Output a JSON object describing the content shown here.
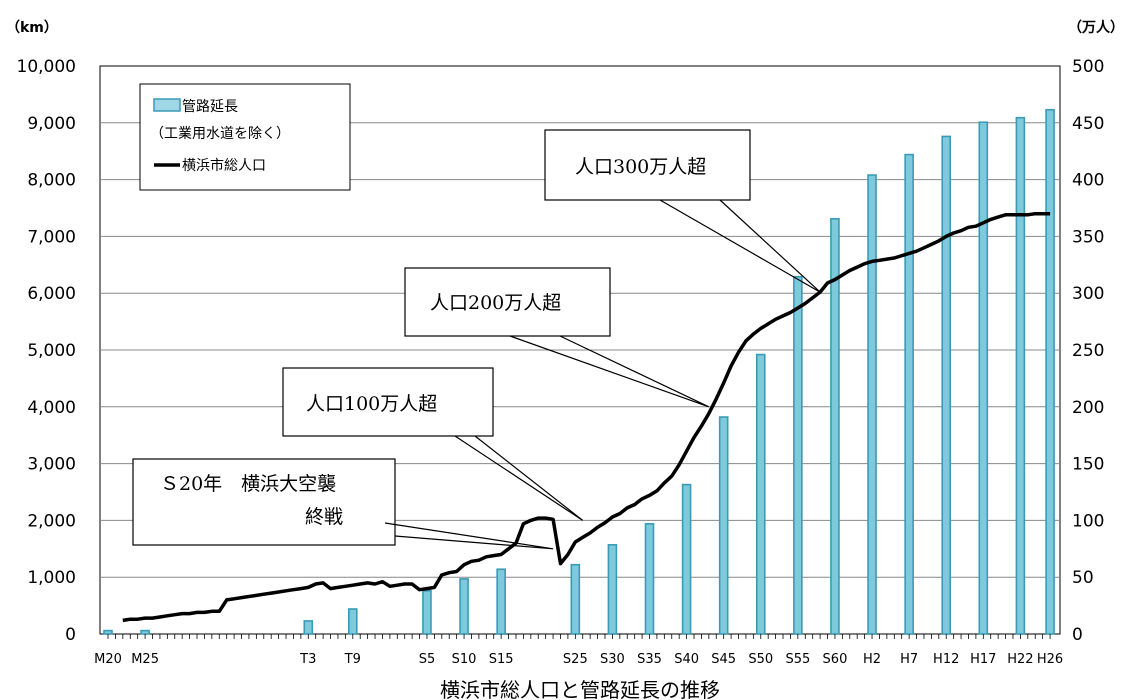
{
  "chart_data": {
    "type": "bar+line",
    "title": "横浜市総人口と管路延長の推移",
    "left_axis_unit": "（km）",
    "right_axis_unit": "（万人）",
    "ylim_left": [
      0,
      10000
    ],
    "ylim_right": [
      0,
      500
    ],
    "y_ticks_left": [
      "0",
      "1,000",
      "2,000",
      "3,000",
      "4,000",
      "5,000",
      "6,000",
      "7,000",
      "8,000",
      "9,000",
      "10,000"
    ],
    "y_ticks_right": [
      "0",
      "50",
      "100",
      "150",
      "200",
      "250",
      "300",
      "350",
      "400",
      "450",
      "500"
    ],
    "x_tick_labels": [
      {
        "label": "M20",
        "year": 1887
      },
      {
        "label": "M25",
        "year": 1892
      },
      {
        "label": "T3",
        "year": 1914
      },
      {
        "label": "T9",
        "year": 1920
      },
      {
        "label": "S5",
        "year": 1930
      },
      {
        "label": "S10",
        "year": 1935
      },
      {
        "label": "S15",
        "year": 1940
      },
      {
        "label": "S25",
        "year": 1950
      },
      {
        "label": "S30",
        "year": 1955
      },
      {
        "label": "S35",
        "year": 1960
      },
      {
        "label": "S40",
        "year": 1965
      },
      {
        "label": "S45",
        "year": 1970
      },
      {
        "label": "S50",
        "year": 1975
      },
      {
        "label": "S55",
        "year": 1980
      },
      {
        "label": "S60",
        "year": 1985
      },
      {
        "label": "H2",
        "year": 1990
      },
      {
        "label": "H7",
        "year": 1995
      },
      {
        "label": "H12",
        "year": 2000
      },
      {
        "label": "H17",
        "year": 2005
      },
      {
        "label": "H22",
        "year": 2010
      },
      {
        "label": "H26",
        "year": 2014
      }
    ],
    "series": [
      {
        "name": "管路延長",
        "name_note": "（工業用水道を除く）",
        "axis": "left",
        "type": "bar",
        "color": "#7ec9dc",
        "edge_color": "#3a9bb5",
        "points": [
          {
            "year": 1887,
            "value": 60
          },
          {
            "year": 1892,
            "value": 60
          },
          {
            "year": 1914,
            "value": 230
          },
          {
            "year": 1920,
            "value": 440
          },
          {
            "year": 1930,
            "value": 760
          },
          {
            "year": 1935,
            "value": 970
          },
          {
            "year": 1940,
            "value": 1140
          },
          {
            "year": 1950,
            "value": 1220
          },
          {
            "year": 1955,
            "value": 1570
          },
          {
            "year": 1960,
            "value": 1940
          },
          {
            "year": 1965,
            "value": 2630
          },
          {
            "year": 1970,
            "value": 3820
          },
          {
            "year": 1975,
            "value": 4920
          },
          {
            "year": 1980,
            "value": 6290
          },
          {
            "year": 1985,
            "value": 7310
          },
          {
            "year": 1990,
            "value": 8080
          },
          {
            "year": 1995,
            "value": 8440
          },
          {
            "year": 2000,
            "value": 8760
          },
          {
            "year": 2005,
            "value": 9010
          },
          {
            "year": 2010,
            "value": 9090
          },
          {
            "year": 2014,
            "value": 9230
          }
        ]
      },
      {
        "name": "横浜市総人口",
        "axis": "right",
        "type": "line",
        "color": "#000000",
        "points": [
          [
            1889,
            12
          ],
          [
            1890,
            13
          ],
          [
            1891,
            13
          ],
          [
            1892,
            14
          ],
          [
            1893,
            14
          ],
          [
            1894,
            15
          ],
          [
            1895,
            16
          ],
          [
            1896,
            17
          ],
          [
            1897,
            18
          ],
          [
            1898,
            18
          ],
          [
            1899,
            19
          ],
          [
            1900,
            19
          ],
          [
            1901,
            20
          ],
          [
            1902,
            20
          ],
          [
            1903,
            30
          ],
          [
            1904,
            31
          ],
          [
            1905,
            32
          ],
          [
            1906,
            33
          ],
          [
            1907,
            34
          ],
          [
            1908,
            35
          ],
          [
            1909,
            36
          ],
          [
            1910,
            37
          ],
          [
            1911,
            38
          ],
          [
            1912,
            39
          ],
          [
            1913,
            40
          ],
          [
            1914,
            41
          ],
          [
            1915,
            44
          ],
          [
            1916,
            45
          ],
          [
            1917,
            40
          ],
          [
            1918,
            41
          ],
          [
            1919,
            42
          ],
          [
            1920,
            43
          ],
          [
            1921,
            44
          ],
          [
            1922,
            45
          ],
          [
            1923,
            44
          ],
          [
            1924,
            46
          ],
          [
            1925,
            42
          ],
          [
            1926,
            43
          ],
          [
            1927,
            44
          ],
          [
            1928,
            44
          ],
          [
            1929,
            39
          ],
          [
            1930,
            40
          ],
          [
            1931,
            41
          ],
          [
            1932,
            52
          ],
          [
            1933,
            54
          ],
          [
            1934,
            55
          ],
          [
            1935,
            61
          ],
          [
            1936,
            64
          ],
          [
            1937,
            65
          ],
          [
            1938,
            68
          ],
          [
            1939,
            69
          ],
          [
            1940,
            70
          ],
          [
            1941,
            75
          ],
          [
            1942,
            80
          ],
          [
            1943,
            97
          ],
          [
            1944,
            100
          ],
          [
            1945,
            102
          ],
          [
            1946,
            102
          ],
          [
            1947,
            101
          ],
          [
            1948,
            62
          ],
          [
            1949,
            70
          ],
          [
            1950,
            81
          ],
          [
            1951,
            85
          ],
          [
            1952,
            89
          ],
          [
            1953,
            94
          ],
          [
            1954,
            98
          ],
          [
            1955,
            103
          ],
          [
            1956,
            106
          ],
          [
            1957,
            111
          ],
          [
            1958,
            114
          ],
          [
            1959,
            119
          ],
          [
            1960,
            122
          ],
          [
            1961,
            126
          ],
          [
            1962,
            133
          ],
          [
            1963,
            139
          ],
          [
            1964,
            149
          ],
          [
            1965,
            161
          ],
          [
            1966,
            173
          ],
          [
            1967,
            183
          ],
          [
            1968,
            194
          ],
          [
            1969,
            207
          ],
          [
            1970,
            221
          ],
          [
            1971,
            236
          ],
          [
            1972,
            248
          ],
          [
            1973,
            258
          ],
          [
            1974,
            264
          ],
          [
            1975,
            269
          ],
          [
            1976,
            273
          ],
          [
            1977,
            277
          ],
          [
            1978,
            280
          ],
          [
            1979,
            283
          ],
          [
            1980,
            287
          ],
          [
            1981,
            291
          ],
          [
            1982,
            296
          ],
          [
            1983,
            301
          ],
          [
            1984,
            309
          ],
          [
            1985,
            312
          ],
          [
            1986,
            316
          ],
          [
            1987,
            320
          ],
          [
            1988,
            323
          ],
          [
            1989,
            326
          ],
          [
            1990,
            328
          ],
          [
            1991,
            329
          ],
          [
            1992,
            330
          ],
          [
            1993,
            331
          ],
          [
            1994,
            333
          ],
          [
            1995,
            335
          ],
          [
            1996,
            337
          ],
          [
            1997,
            340
          ],
          [
            1998,
            343
          ],
          [
            1999,
            346
          ],
          [
            2000,
            350
          ],
          [
            2001,
            353
          ],
          [
            2002,
            355
          ],
          [
            2003,
            358
          ],
          [
            2004,
            359
          ],
          [
            2005,
            362
          ],
          [
            2006,
            365
          ],
          [
            2007,
            367
          ],
          [
            2008,
            369
          ],
          [
            2009,
            369
          ],
          [
            2010,
            369
          ],
          [
            2011,
            369
          ],
          [
            2012,
            370
          ],
          [
            2013,
            370
          ],
          [
            2014,
            370
          ]
        ]
      }
    ],
    "legend": {
      "position": "top-left",
      "items": [
        "管路延長",
        "（工業用水道を除く）",
        "横浜市総人口"
      ]
    },
    "annotations": [
      {
        "line1": "人口300万人超",
        "line2": "",
        "target_year": 1983,
        "target_value_right": 301
      },
      {
        "line1": "人口200万人超",
        "line2": "",
        "target_year": 1968,
        "target_value_right": 200
      },
      {
        "line1": "人口100万人超",
        "line2": "",
        "target_year": 1951,
        "target_value_right": 100
      },
      {
        "line1": "Ｓ20年　横浜大空襲",
        "line2": "終戦",
        "target_year": 1947,
        "target_value_right": 75
      }
    ],
    "grid": true
  }
}
